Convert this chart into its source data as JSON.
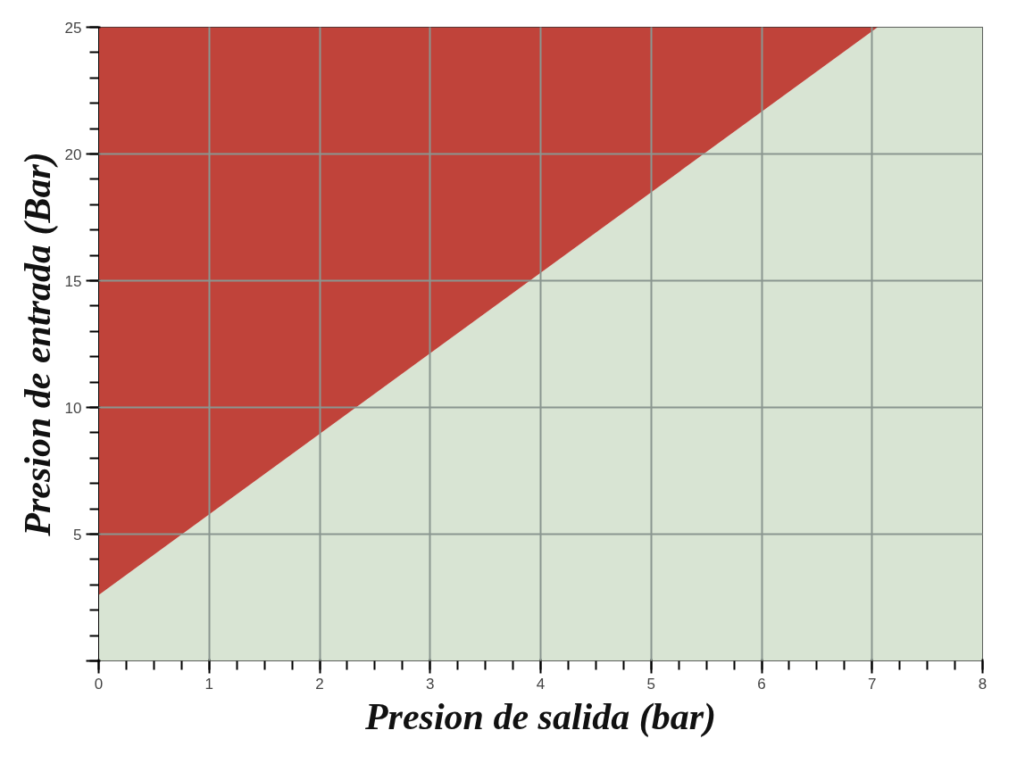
{
  "chart_data": {
    "type": "area",
    "xlabel": "Presion de salida (bar)",
    "ylabel": "Presion de entrada (Bar)",
    "x": [
      0,
      7.05,
      8
    ],
    "stacked": true,
    "series": [
      {
        "color": "#d8e4d3",
        "values": [
          2.6,
          25,
          25
        ]
      },
      {
        "color": "#c0433a",
        "values": [
          22.4,
          0,
          0
        ]
      }
    ],
    "xlim": [
      0,
      8
    ],
    "ylim": [
      0,
      25
    ],
    "xticks": [
      0,
      1,
      2,
      3,
      4,
      5,
      6,
      7,
      8
    ],
    "yticks": [
      {
        "value": 0,
        "label": null
      },
      5,
      10,
      15,
      20,
      25
    ],
    "grid": true
  }
}
